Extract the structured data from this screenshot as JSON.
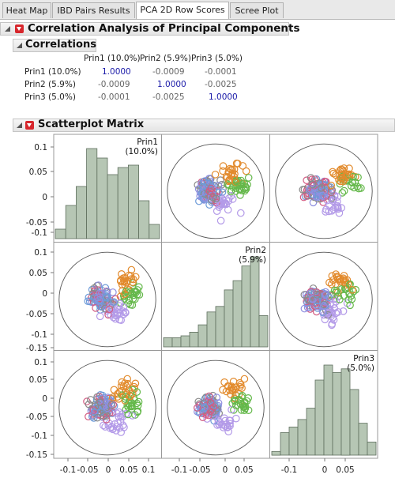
{
  "tabs": [
    {
      "label": "Heat Map",
      "active": false
    },
    {
      "label": "IBD Pairs Results",
      "active": false
    },
    {
      "label": "PCA 2D Row Scores",
      "active": true
    },
    {
      "label": "Scree Plot",
      "active": false
    }
  ],
  "report": {
    "main_title": "Correlation Analysis of Principal Components",
    "correlations_title": "Correlations",
    "scatter_title": "Scatterplot Matrix"
  },
  "correlations": {
    "columns": [
      "Prin1 (10.0%)",
      "Prin2 (5.9%)",
      "Prin3 (5.0%)"
    ],
    "rows": [
      {
        "label": "Prin1 (10.0%)",
        "values": [
          "1.0000",
          "-0.0009",
          "-0.0001"
        ]
      },
      {
        "label": "Prin2 (5.9%)",
        "values": [
          "-0.0009",
          "1.0000",
          "-0.0025"
        ]
      },
      {
        "label": "Prin3 (5.0%)",
        "values": [
          "-0.0001",
          "-0.0025",
          "1.0000"
        ]
      }
    ]
  },
  "matrix": {
    "variables": [
      {
        "name": "Prin1",
        "pct": "(10.0%)"
      },
      {
        "name": "Prin2",
        "pct": "(5.9%)"
      },
      {
        "name": "Prin3",
        "pct": "(5.0%)"
      }
    ],
    "y_ticks": [
      [
        "0.1",
        "0.05",
        "0",
        "-0.05",
        "-0.1"
      ],
      [
        "0.1",
        "0.05",
        "0",
        "-0.05",
        "-0.1",
        "-0.15"
      ],
      [
        "0.1",
        "0.05",
        "0",
        "-0.05",
        "-0.1",
        "-0.15"
      ]
    ],
    "x_ticks": [
      [
        "-0.1",
        "-0.05",
        "0",
        "0.05",
        "0.1"
      ],
      [
        "-0.1",
        "-0.05",
        "0",
        "0.05"
      ],
      [
        "-0.1",
        "0",
        "0.05"
      ]
    ],
    "colors": {
      "histogram": "#b6c6b4",
      "histogram_edge": "#5f6f5e",
      "ellipse": "#555555",
      "points": [
        "#8f8fe0",
        "#b39ae8",
        "#e28a2c",
        "#64b84a",
        "#6e9bd8",
        "#d25c83",
        "#8a8a8a"
      ]
    }
  },
  "chart_data": [
    {
      "type": "bar",
      "title": "Prin1 (10.0%)",
      "xlabel": "",
      "ylabel": "",
      "categories": [
        "-0.1 to -0.085",
        "-0.085 to -0.065",
        "-0.065 to -0.045",
        "-0.045 to -0.025",
        "-0.025 to -0.005",
        "-0.005 to 0.015",
        "0.015 to 0.035",
        "0.035 to 0.055",
        "0.055 to 0.075",
        "0.075 to 0.095"
      ],
      "values": [
        4,
        14,
        22,
        38,
        34,
        27,
        30,
        31,
        16,
        6
      ]
    },
    {
      "type": "bar",
      "title": "Prin2 (5.9%)",
      "xlabel": "",
      "ylabel": "",
      "categories": [
        "-0.165 to -0.145",
        "-0.145 to -0.125",
        "-0.125 to -0.105",
        "-0.105 to -0.085",
        "-0.085 to -0.065",
        "-0.065 to -0.045",
        "-0.045 to -0.025",
        "-0.025 to -0.005",
        "-0.005 to 0.015",
        "0.015 to 0.035",
        "0.035 to 0.055",
        "0.055 to 0.075"
      ],
      "values": [
        5,
        5,
        6,
        8,
        12,
        19,
        22,
        31,
        36,
        44,
        49,
        17
      ]
    },
    {
      "type": "bar",
      "title": "Prin3 (5.0%)",
      "xlabel": "",
      "ylabel": "",
      "categories": [
        "-0.15 to -0.13",
        "-0.13 to -0.11",
        "-0.11 to -0.09",
        "-0.09 to -0.07",
        "-0.07 to -0.05",
        "-0.05 to -0.03",
        "-0.03 to -0.01",
        "-0.01 to 0.01",
        "0.01 to 0.03",
        "0.03 to 0.05",
        "0.05 to 0.07",
        "0.07 to 0.09"
      ],
      "values": [
        2,
        12,
        15,
        19,
        25,
        40,
        48,
        44,
        46,
        35,
        17,
        7
      ]
    }
  ]
}
